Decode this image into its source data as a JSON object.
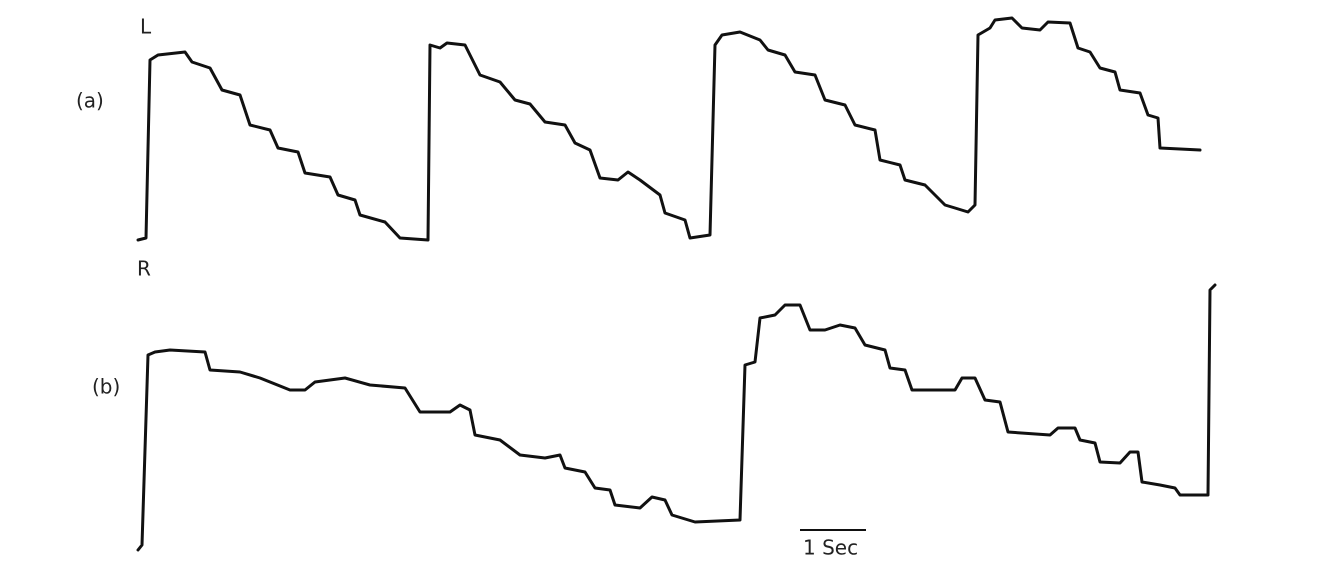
{
  "figure": {
    "left_label": "L",
    "right_label": "R",
    "panel_a": "(a)",
    "panel_b": "(b)",
    "scale_bar": "1 Sec"
  }
}
